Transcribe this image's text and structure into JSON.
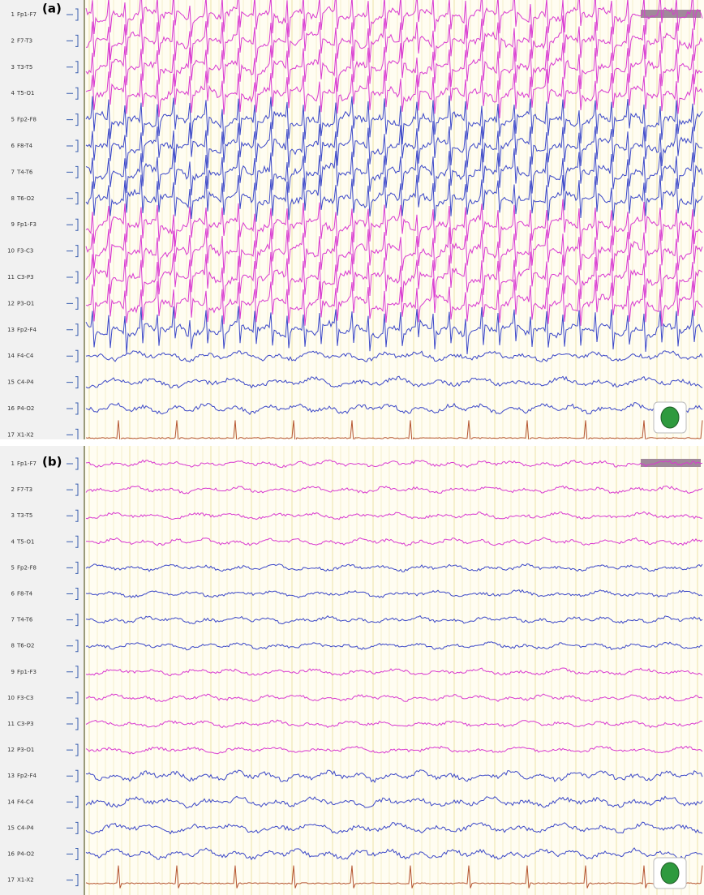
{
  "panels": [
    {
      "label": "(a)",
      "channels": [
        {
          "number": "1",
          "name": "Fp1-F7"
        },
        {
          "number": "2",
          "name": "F7-T3"
        },
        {
          "number": "3",
          "name": "T3-T5"
        },
        {
          "number": "4",
          "name": "T5-O1"
        },
        {
          "number": "5",
          "name": "Fp2-F8"
        },
        {
          "number": "6",
          "name": "F8-T4"
        },
        {
          "number": "7",
          "name": "T4-T6"
        },
        {
          "number": "8",
          "name": "T6-O2"
        },
        {
          "number": "9",
          "name": "Fp1-F3"
        },
        {
          "number": "10",
          "name": "F3-C3"
        },
        {
          "number": "11",
          "name": "C3-P3"
        },
        {
          "number": "12",
          "name": "P3-O1"
        },
        {
          "number": "13",
          "name": "Fp2-F4"
        },
        {
          "number": "14",
          "name": "F4-C4"
        },
        {
          "number": "15",
          "name": "C4-P4"
        },
        {
          "number": "16",
          "name": "P4-O2"
        },
        {
          "number": "17",
          "name": "X1-X2"
        }
      ]
    },
    {
      "label": "(b)",
      "channels": [
        {
          "number": "1",
          "name": "Fp1-F7"
        },
        {
          "number": "2",
          "name": "F7-T3"
        },
        {
          "number": "3",
          "name": "T3-T5"
        },
        {
          "number": "4",
          "name": "T5-O1"
        },
        {
          "number": "5",
          "name": "Fp2-F8"
        },
        {
          "number": "6",
          "name": "F8-T4"
        },
        {
          "number": "7",
          "name": "T4-T6"
        },
        {
          "number": "8",
          "name": "T6-O2"
        },
        {
          "number": "9",
          "name": "Fp1-F3"
        },
        {
          "number": "10",
          "name": "F3-C3"
        },
        {
          "number": "11",
          "name": "C3-P3"
        },
        {
          "number": "12",
          "name": "P3-O1"
        },
        {
          "number": "13",
          "name": "Fp2-F4"
        },
        {
          "number": "14",
          "name": "F4-C4"
        },
        {
          "number": "15",
          "name": "C4-P4"
        },
        {
          "number": "16",
          "name": "P4-O2"
        },
        {
          "number": "17",
          "name": "X1-X2"
        }
      ]
    }
  ]
}
